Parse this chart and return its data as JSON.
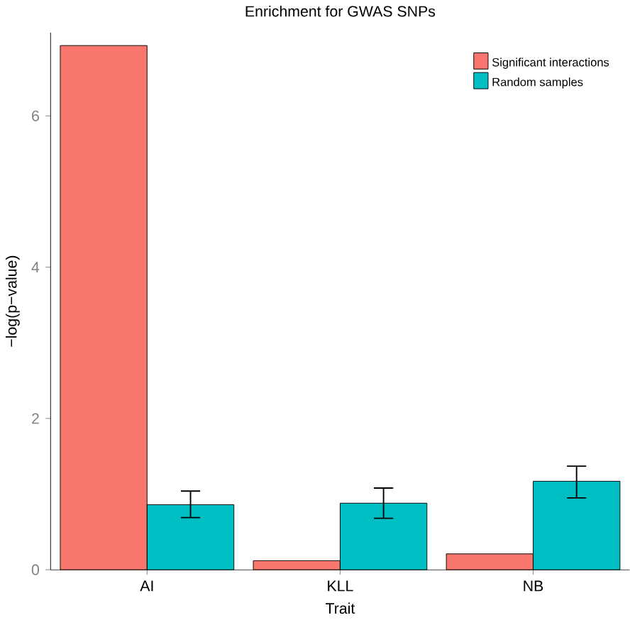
{
  "chart_data": {
    "type": "bar",
    "title": "Enrichment for GWAS SNPs",
    "xlabel": "Trait",
    "ylabel": "−log(p−value)",
    "categories": [
      "AI",
      "KLL",
      "NB"
    ],
    "series": [
      {
        "name": "Significant interactions",
        "color": "#f8766d",
        "values": [
          6.93,
          0.12,
          0.21
        ]
      },
      {
        "name": "Random samples",
        "color": "#00bfc4",
        "values": [
          0.86,
          0.88,
          1.17
        ],
        "errors": [
          [
            0.69,
            1.04
          ],
          [
            0.68,
            1.08
          ],
          [
            0.95,
            1.37
          ]
        ]
      }
    ],
    "ylim": [
      0,
      7.1
    ],
    "yticks": [
      0,
      2,
      4,
      6
    ],
    "legend": "top right"
  }
}
